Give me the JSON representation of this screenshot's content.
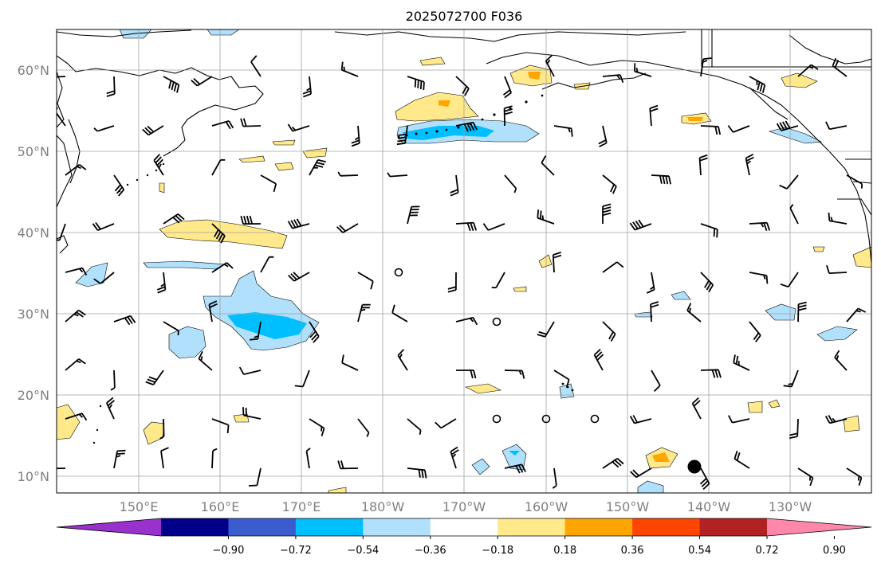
{
  "map": {
    "title": "2025072700 F036",
    "lat_labels": [
      "60°N",
      "50°N",
      "40°N",
      "30°N",
      "20°N",
      "10°N"
    ],
    "lon_labels": [
      "150°E",
      "160°E",
      "170°E",
      "180°W",
      "170°W",
      "160°W",
      "150°W",
      "140°W",
      "130°W"
    ],
    "colorbar": {
      "ticks": [
        "−0.90",
        "−0.72",
        "−0.54",
        "−0.36",
        "−0.18",
        "0.18",
        "0.36",
        "0.54",
        "0.72",
        "0.90"
      ],
      "colors": [
        "#9932cc",
        "#00008b",
        "#3a5ccf",
        "#00bfff",
        "#b0e0fb",
        "#ffffff",
        "#ffe98a",
        "#ffa500",
        "#ff4500",
        "#b22222",
        "#ff88aa"
      ]
    },
    "fill_colors": {
      "light_blue": "#b0e0fb",
      "deep_sky_blue": "#00bfff",
      "light_yellow": "#ffe98a",
      "orange": "#ffa500",
      "grid": "#a0a0a0",
      "tick_label": "#808080"
    },
    "icons": [
      "wind-barb-icon",
      "calm-circle-icon",
      "storm-marker-icon"
    ]
  }
}
